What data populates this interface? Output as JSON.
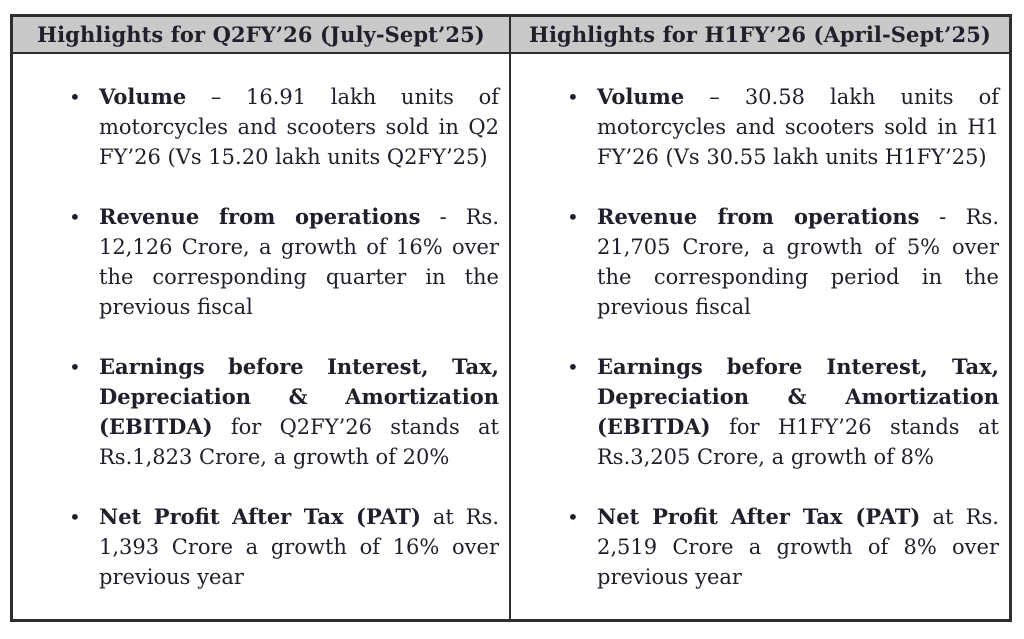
{
  "document": {
    "columns": [
      {
        "header": "Highlights for Q2FY’26 (July-Sept’25)",
        "bullets": [
          {
            "lead": "Volume",
            "text": " – 16.91 lakh units of motorcycles and scooters sold in Q2 FY’26 (Vs 15.20 lakh units Q2FY’25)"
          },
          {
            "lead": "Revenue from operations",
            "text": " - Rs. 12,126 Crore, a growth of 16% over the corresponding quarter in the previous fiscal"
          },
          {
            "lead": "Earnings before Interest, Tax, Depreciation & Amortization (EBITDA)",
            "text": " for Q2FY’26 stands at Rs.1,823 Crore, a growth of 20%"
          },
          {
            "lead": "Net Profit After Tax (PAT)",
            "text": " at Rs. 1,393 Crore a growth of 16% over previous year"
          }
        ]
      },
      {
        "header": "Highlights for H1FY’26 (April-Sept’25)",
        "bullets": [
          {
            "lead": "Volume",
            "text": " – 30.58 lakh units of motorcycles and scooters sold in H1 FY’26 (Vs 30.55 lakh units H1FY’25)"
          },
          {
            "lead": "Revenue from operations",
            "text": " - Rs. 21,705 Crore, a growth of 5% over the corresponding period in the previous fiscal"
          },
          {
            "lead": "Earnings before Interest, Tax, Depreciation & Amortization (EBITDA)",
            "text": " for H1FY’26 stands at Rs.3,205 Crore, a growth of 8%"
          },
          {
            "lead": "Net Profit After Tax (PAT)",
            "text": " at Rs. 2,519 Crore a growth of 8% over previous year"
          }
        ]
      }
    ]
  },
  "glyphs": {
    "bullet": "•"
  },
  "colors": {
    "header_bg": "#c9c9c9",
    "border": "#2e2e2e",
    "text": "#20202c",
    "page_bg": "#ffffff"
  }
}
